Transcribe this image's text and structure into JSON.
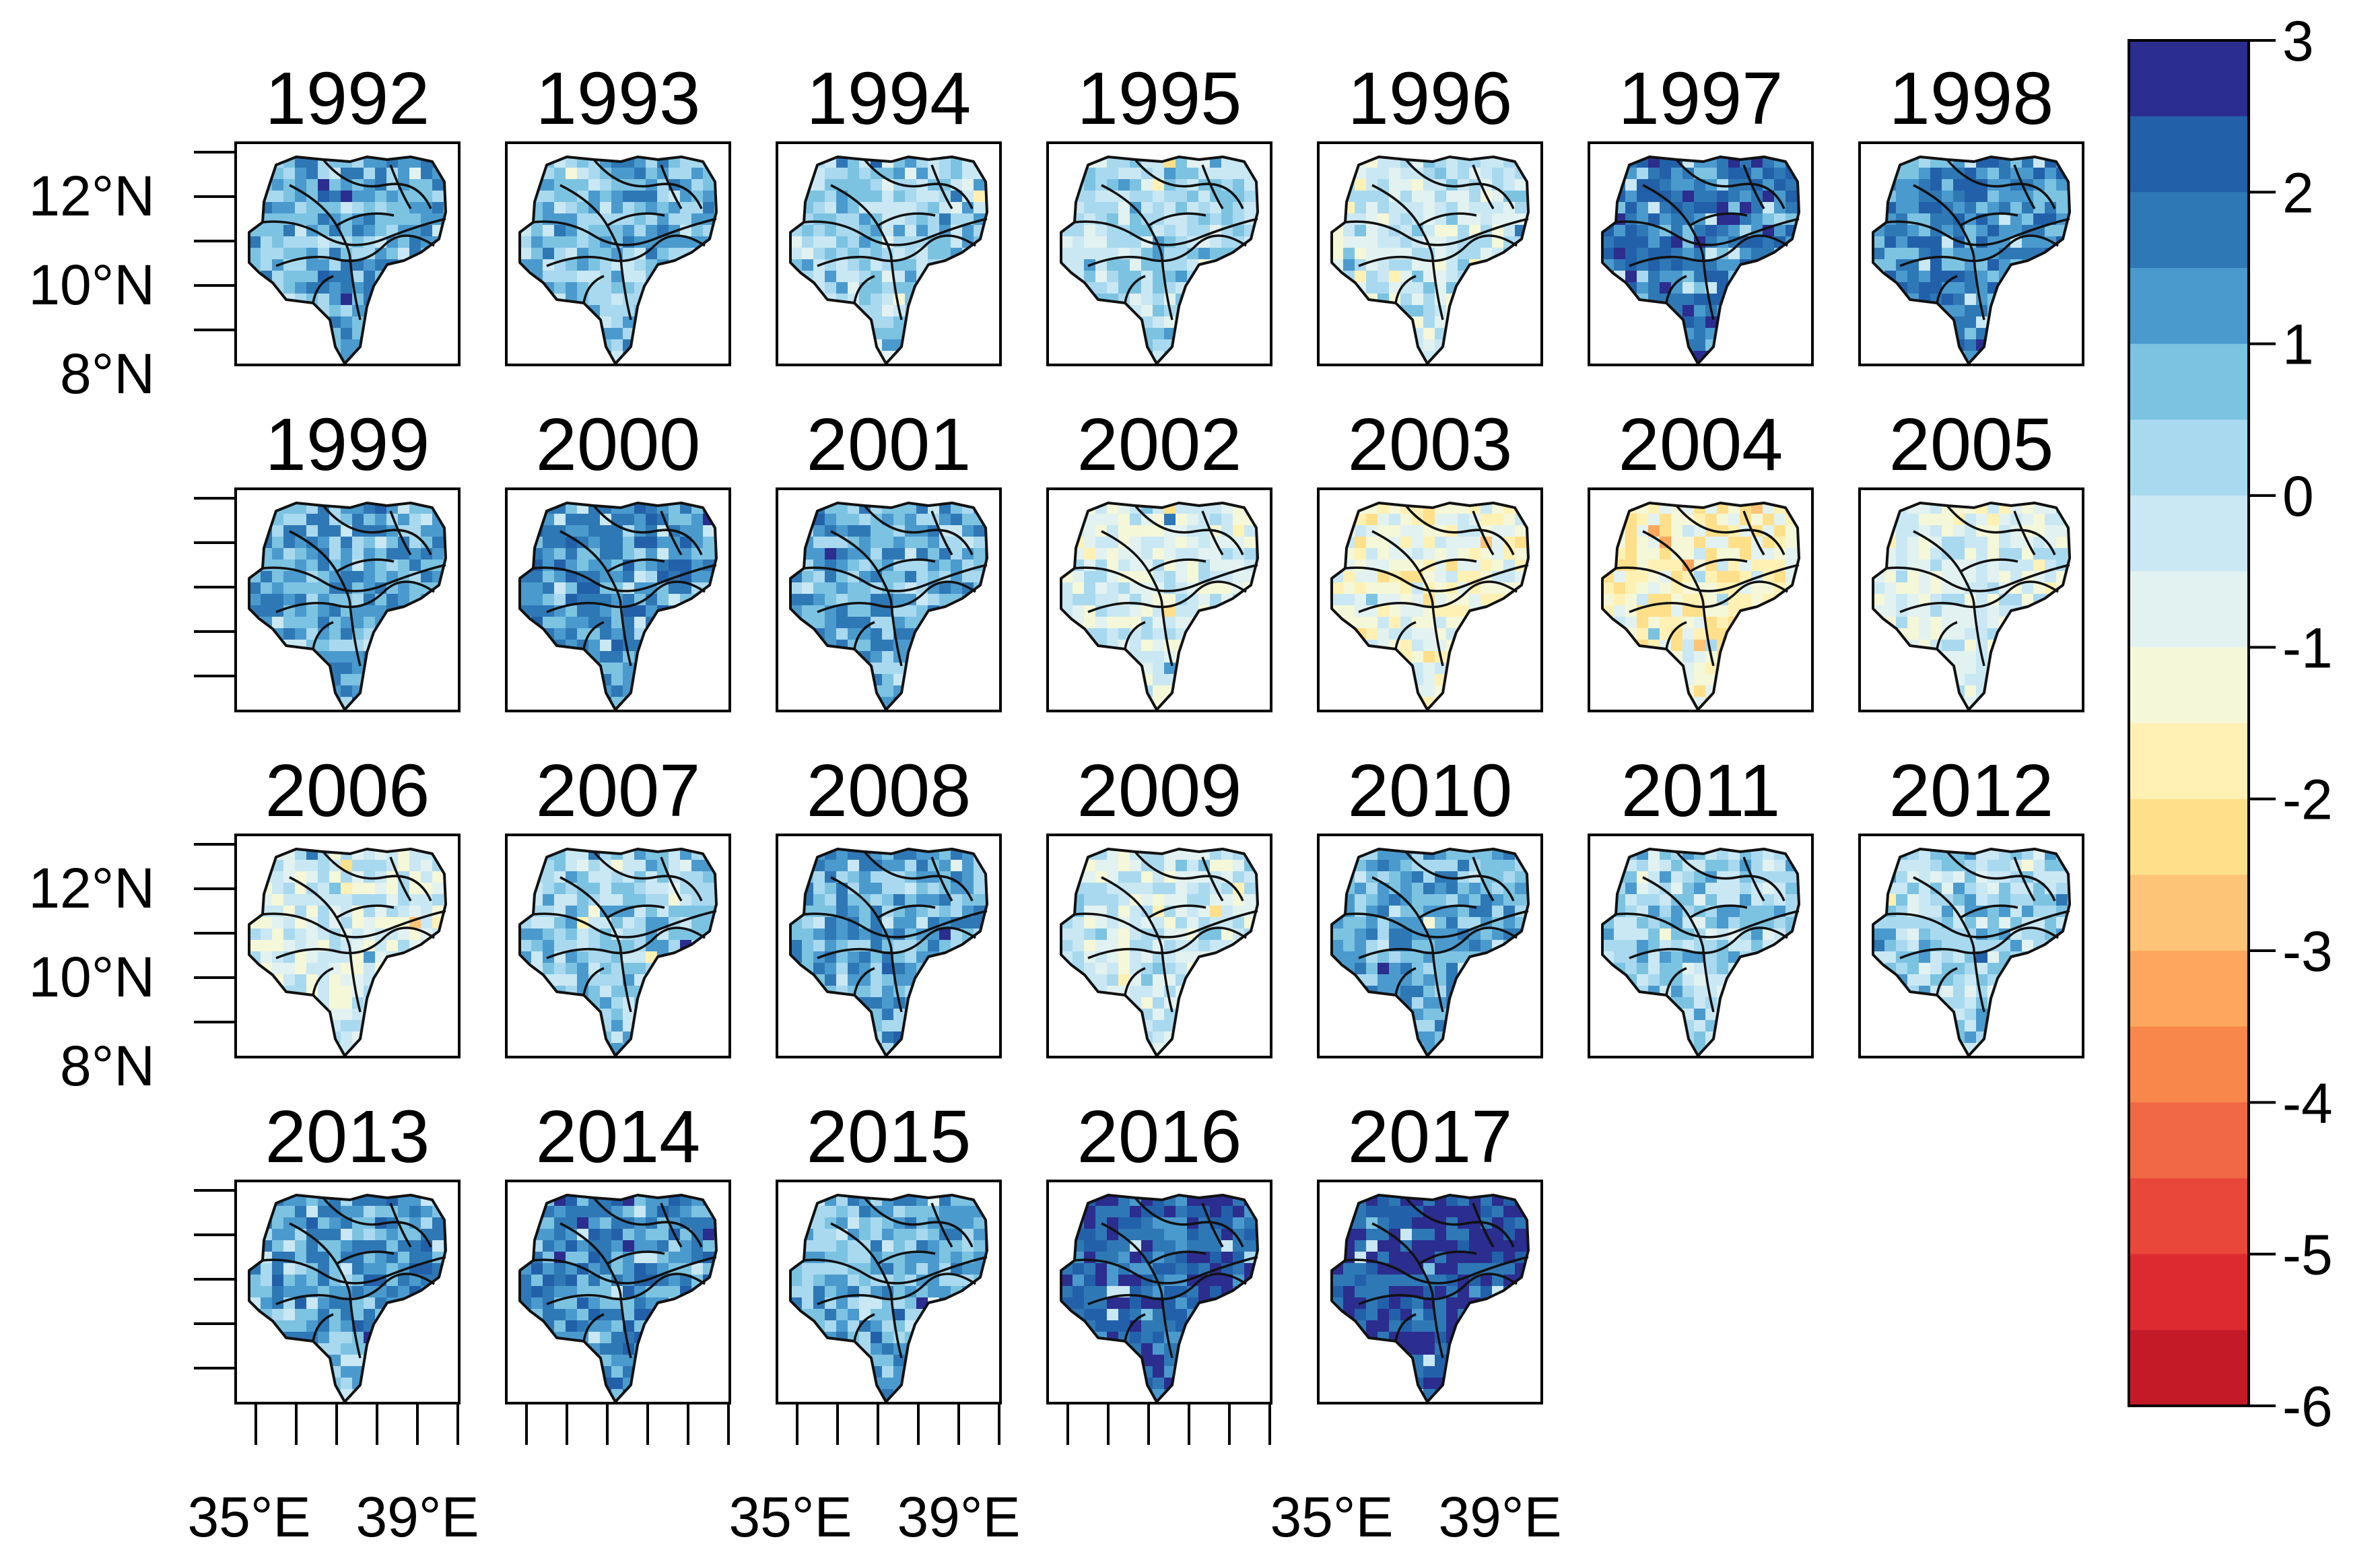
{
  "years": [
    "1992",
    "1993",
    "1994",
    "1995",
    "1996",
    "1997",
    "1998",
    "1999",
    "2000",
    "2001",
    "2002",
    "2003",
    "2004",
    "2005",
    "2006",
    "2007",
    "2008",
    "2009",
    "2010",
    "2011",
    "2012",
    "2013",
    "2014",
    "2015",
    "2016",
    "2017"
  ],
  "panel_anomaly_mean": [
    1.0,
    0.8,
    0.3,
    0.2,
    -0.3,
    1.8,
    1.5,
    1.1,
    1.3,
    1.1,
    -0.6,
    -1.2,
    -1.5,
    -0.8,
    -0.5,
    0.4,
    1.0,
    -0.3,
    1.0,
    0.3,
    0.3,
    1.2,
    1.4,
    0.9,
    2.2,
    2.4
  ],
  "latitude_ticks": [
    "12°N",
    "10°N",
    "8°N"
  ],
  "longitude_ticks": [
    "35°E",
    "39°E"
  ],
  "colorbar": {
    "labels": [
      "3",
      "2",
      "1",
      "0",
      "-1",
      "-2",
      "-3",
      "-4",
      "-5",
      "-6"
    ],
    "min": -6,
    "max": 3,
    "colors": [
      "#2b2d8f",
      "#2261aa",
      "#2f78b6",
      "#4a9ace",
      "#7cc3e2",
      "#a9d9ef",
      "#c9e8f3",
      "#e2f2f0",
      "#f4f7d8",
      "#fff1b3",
      "#fee08b",
      "#fdc478",
      "#fca75d",
      "#f8874b",
      "#f16844",
      "#e9473a",
      "#dd2a31",
      "#c41a28"
    ]
  }
}
